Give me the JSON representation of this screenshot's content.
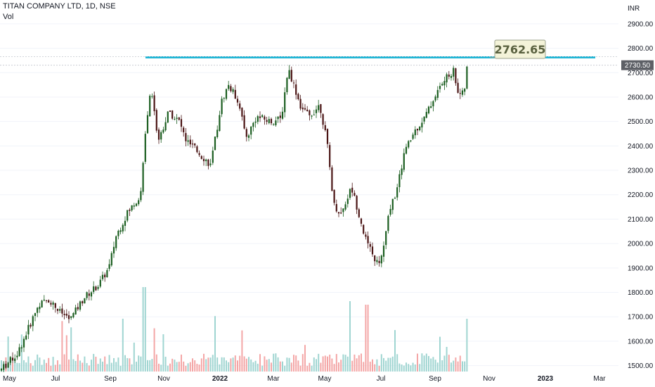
{
  "header": {
    "symbol": "TITAN COMPANY LTD, 1D, NSE",
    "volume_label": "Vol",
    "currency": "INR"
  },
  "colors": {
    "up": "#1b5e20",
    "down": "#4a1414",
    "line": "#1eb6d6",
    "vol_up": "#9fd5d1",
    "vol_down": "#f4a6a6",
    "grid": "#f0f3fa"
  },
  "chart_data": {
    "type": "candlestick",
    "y_axis": {
      "ticks": [
        "1500.00",
        "1600.00",
        "1700.00",
        "1800.00",
        "1900.00",
        "2000.00",
        "2100.00",
        "2200.00",
        "2300.00",
        "2400.00",
        "2500.00",
        "2600.00",
        "2700.00",
        "2800.00",
        "2900.00"
      ],
      "tick_values": [
        1500,
        1600,
        1700,
        1800,
        1900,
        2000,
        2100,
        2200,
        2300,
        2400,
        2500,
        2600,
        2700,
        2800,
        2900
      ],
      "range": [
        1470,
        2940
      ]
    },
    "x_axis": {
      "labels": [
        "May",
        "Jul",
        "Sep",
        "Nov",
        "2022",
        "Mar",
        "May",
        "Jul",
        "Sep",
        "Nov",
        "2023",
        "Mar"
      ]
    },
    "current_price": "2730.50",
    "resistance": {
      "label": "2762.65",
      "value": 2762.65
    },
    "price_path": [
      [
        0,
        1480
      ],
      [
        25,
        1550
      ],
      [
        40,
        1650
      ],
      [
        55,
        1750
      ],
      [
        70,
        1770
      ],
      [
        85,
        1720
      ],
      [
        100,
        1690
      ],
      [
        120,
        1780
      ],
      [
        140,
        1830
      ],
      [
        155,
        1900
      ],
      [
        165,
        2030
      ],
      [
        180,
        2120
      ],
      [
        195,
        2180
      ],
      [
        202,
        2210
      ],
      [
        205,
        2420
      ],
      [
        215,
        2650
      ],
      [
        225,
        2420
      ],
      [
        240,
        2540
      ],
      [
        255,
        2500
      ],
      [
        265,
        2420
      ],
      [
        280,
        2380
      ],
      [
        300,
        2320
      ],
      [
        315,
        2580
      ],
      [
        325,
        2650
      ],
      [
        340,
        2580
      ],
      [
        350,
        2430
      ],
      [
        365,
        2520
      ],
      [
        385,
        2500
      ],
      [
        400,
        2510
      ],
      [
        410,
        2720
      ],
      [
        418,
        2650
      ],
      [
        428,
        2560
      ],
      [
        440,
        2520
      ],
      [
        455,
        2570
      ],
      [
        465,
        2420
      ],
      [
        475,
        2160
      ],
      [
        485,
        2120
      ],
      [
        500,
        2230
      ],
      [
        510,
        2130
      ],
      [
        520,
        2020
      ],
      [
        530,
        1950
      ],
      [
        540,
        1910
      ],
      [
        548,
        2020
      ],
      [
        555,
        2150
      ],
      [
        565,
        2220
      ],
      [
        575,
        2370
      ],
      [
        590,
        2460
      ],
      [
        605,
        2520
      ],
      [
        618,
        2600
      ],
      [
        630,
        2660
      ],
      [
        645,
        2710
      ],
      [
        652,
        2620
      ],
      [
        660,
        2610
      ],
      [
        665,
        2730
      ]
    ]
  }
}
